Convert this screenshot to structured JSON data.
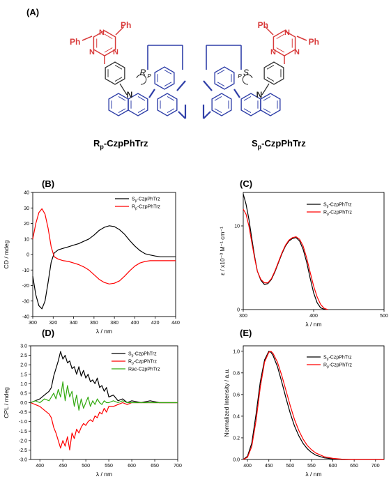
{
  "panels": {
    "a": "(A)",
    "b": "(B)",
    "c": "(C)",
    "d": "(D)",
    "e": "(E)"
  },
  "molecules": {
    "left": {
      "name_prefix": "R",
      "name_sub": "p",
      "name_suffix": "-CzpPhTrz",
      "chirality": "R",
      "chirality_sub": "P"
    },
    "right": {
      "name_prefix": "S",
      "name_sub": "p",
      "name_suffix": "-CzpPhTrz",
      "chirality": "S",
      "chirality_sub": "P"
    },
    "atoms": {
      "ph": "Ph",
      "n": "N"
    },
    "colors": {
      "triazine": "#d83a3a",
      "carbazole": "#2f3fa8",
      "linker": "#2f3fa8"
    }
  },
  "colors": {
    "sp": "#000000",
    "rp": "#ff0000",
    "rac": "#33aa11"
  },
  "chart_data": [
    {
      "panel": "(B)",
      "type": "line",
      "xlabel": "λ / nm",
      "ylabel": "CD / mdeg",
      "xlim": [
        300,
        440
      ],
      "ylim": [
        -40,
        40
      ],
      "xticks": [
        300,
        320,
        340,
        360,
        380,
        400,
        420,
        440
      ],
      "yticks": [
        -40,
        -30,
        -20,
        -10,
        0,
        10,
        20,
        30,
        40
      ],
      "legend": "top-right",
      "series": [
        {
          "name_prefix": "S",
          "name_sub": "p",
          "name_suffix": "-CzpPhTrz",
          "color": "#000000",
          "x": [
            300,
            303,
            306,
            309,
            312,
            315,
            318,
            321,
            325,
            330,
            335,
            340,
            345,
            350,
            355,
            360,
            365,
            370,
            375,
            380,
            385,
            390,
            395,
            400,
            405,
            410,
            415,
            420,
            425,
            430,
            440
          ],
          "y": [
            -14,
            -26,
            -33,
            -35,
            -30,
            -18,
            -5,
            1,
            3,
            4,
            5,
            6,
            7,
            8.5,
            10,
            12.5,
            15.5,
            17.5,
            18.5,
            18,
            16,
            13,
            9,
            5.5,
            2.5,
            0.5,
            -0.3,
            -1,
            -1.5,
            -1.5,
            -1.5
          ]
        },
        {
          "name_prefix": "R",
          "name_sub": "p",
          "name_suffix": "-CzpPhTrz",
          "color": "#ff0000",
          "x": [
            300,
            303,
            306,
            309,
            312,
            315,
            318,
            321,
            325,
            330,
            335,
            340,
            345,
            350,
            355,
            360,
            365,
            370,
            375,
            380,
            385,
            390,
            395,
            400,
            405,
            410,
            415,
            420,
            425,
            430,
            440
          ],
          "y": [
            10,
            20,
            27,
            29.5,
            26,
            17,
            5,
            -1.5,
            -3,
            -4,
            -4.5,
            -5.5,
            -6.5,
            -8,
            -10,
            -13,
            -16,
            -18,
            -19,
            -18.5,
            -17,
            -14,
            -10.5,
            -7.5,
            -5.5,
            -4.5,
            -4,
            -4,
            -4,
            -4,
            -4
          ]
        }
      ]
    },
    {
      "panel": "(C)",
      "type": "line",
      "xlabel": "λ / nm",
      "ylabel": "ε / x10⁻³ M⁻¹ cm⁻¹",
      "xlim": [
        300,
        500
      ],
      "ylim": [
        0,
        14
      ],
      "xticks": [
        300,
        400,
        500
      ],
      "yticks": [
        0,
        10
      ],
      "legend": "top-right",
      "series": [
        {
          "name_prefix": "S",
          "name_sub": "p",
          "name_suffix": "-CzpPhTrz",
          "color": "#000000",
          "x": [
            300,
            304,
            308,
            312,
            316,
            320,
            325,
            330,
            335,
            340,
            345,
            350,
            355,
            360,
            365,
            370,
            375,
            380,
            385,
            390,
            395,
            400,
            405,
            410,
            415,
            420
          ],
          "y": [
            13.8,
            12.6,
            10.8,
            8.6,
            6.4,
            4.6,
            3.5,
            3.0,
            3.1,
            3.6,
            4.5,
            5.6,
            6.7,
            7.6,
            8.2,
            8.5,
            8.6,
            8.2,
            7.2,
            5.7,
            3.8,
            2.0,
            0.8,
            0.2,
            0.05,
            0
          ]
        },
        {
          "name_prefix": "R",
          "name_sub": "p",
          "name_suffix": "-CzpPhTrz",
          "color": "#ff0000",
          "x": [
            300,
            304,
            308,
            312,
            316,
            320,
            325,
            330,
            335,
            340,
            345,
            350,
            355,
            360,
            365,
            370,
            375,
            380,
            385,
            390,
            395,
            400,
            405,
            410,
            415,
            420
          ],
          "y": [
            12.0,
            11.4,
            10.0,
            8.1,
            6.2,
            4.6,
            3.6,
            3.2,
            3.2,
            3.7,
            4.6,
            5.7,
            6.8,
            7.7,
            8.3,
            8.6,
            8.7,
            8.4,
            7.6,
            6.2,
            4.5,
            2.8,
            1.5,
            0.6,
            0.15,
            0
          ]
        }
      ]
    },
    {
      "panel": "(D)",
      "type": "line",
      "xlabel": "λ / nm",
      "ylabel": "CPL / mdeg",
      "xlim": [
        380,
        700
      ],
      "ylim": [
        -3.0,
        3.0
      ],
      "xticks": [
        400,
        450,
        500,
        550,
        600,
        650,
        700
      ],
      "yticks": [
        -3.0,
        -2.5,
        -2.0,
        -1.5,
        -1.0,
        -0.5,
        0.0,
        0.5,
        1.0,
        1.5,
        2.0,
        2.5,
        3.0
      ],
      "legend": "top-right",
      "series": [
        {
          "name_prefix": "S",
          "name_sub": "p",
          "name_suffix": "-CzpPhTrz",
          "color": "#000000",
          "x": [
            380,
            390,
            400,
            410,
            420,
            425,
            430,
            435,
            440,
            445,
            450,
            455,
            460,
            465,
            470,
            475,
            480,
            485,
            490,
            495,
            500,
            505,
            510,
            515,
            520,
            525,
            530,
            535,
            540,
            545,
            550,
            560,
            570,
            580,
            590,
            600,
            620,
            640,
            660,
            680,
            700
          ],
          "y": [
            0.0,
            0.1,
            0.2,
            0.4,
            0.6,
            0.8,
            1.4,
            1.8,
            2.2,
            2.7,
            2.3,
            2.5,
            2.1,
            2.2,
            1.8,
            1.9,
            1.5,
            1.9,
            1.4,
            1.7,
            1.3,
            1.5,
            1.1,
            1.2,
            1.0,
            1.3,
            0.8,
            0.9,
            0.6,
            0.8,
            0.3,
            0.4,
            0.1,
            0.2,
            0.0,
            0.1,
            0.0,
            0.1,
            0.0,
            0.0,
            0.0
          ]
        },
        {
          "name_prefix": "R",
          "name_sub": "p",
          "name_suffix": "-CzpPhTrz",
          "color": "#ff0000",
          "x": [
            380,
            390,
            400,
            410,
            420,
            425,
            430,
            435,
            440,
            445,
            450,
            455,
            460,
            465,
            470,
            475,
            480,
            485,
            490,
            495,
            500,
            505,
            510,
            515,
            520,
            525,
            530,
            535,
            540,
            545,
            550,
            560,
            570,
            580,
            590,
            600,
            620,
            640,
            660,
            680,
            700
          ],
          "y": [
            0.0,
            -0.1,
            -0.2,
            -0.4,
            -0.6,
            -0.8,
            -1.3,
            -1.6,
            -2.0,
            -2.4,
            -2.0,
            -2.3,
            -1.8,
            -2.5,
            -1.6,
            -1.9,
            -1.4,
            -1.6,
            -1.3,
            -1.1,
            -1.2,
            -1.0,
            -0.9,
            -1.0,
            -0.7,
            -0.8,
            -0.5,
            -0.6,
            -0.3,
            -0.5,
            -0.2,
            -0.2,
            -0.1,
            0.0,
            -0.1,
            0.0,
            0.0,
            0.0,
            0.0,
            0.0,
            0.0
          ]
        },
        {
          "name_prefix": "Rac-CzpPhTrz",
          "name_sub": "",
          "name_suffix": "",
          "color": "#33aa11",
          "x": [
            380,
            390,
            400,
            410,
            420,
            425,
            430,
            435,
            440,
            445,
            450,
            455,
            460,
            465,
            470,
            475,
            480,
            485,
            490,
            495,
            500,
            505,
            510,
            515,
            520,
            525,
            530,
            535,
            540,
            545,
            550,
            560,
            570,
            580,
            590,
            600,
            620,
            640,
            660,
            680,
            700
          ],
          "y": [
            0.0,
            0.1,
            0.0,
            0.2,
            0.1,
            0.3,
            0.5,
            0.2,
            0.7,
            0.3,
            1.1,
            0.1,
            0.9,
            0.3,
            0.6,
            -0.2,
            0.4,
            -0.4,
            0.2,
            -0.3,
            0.0,
            0.3,
            -0.2,
            0.1,
            -0.1,
            0.2,
            0.0,
            -0.1,
            0.1,
            0.0,
            0.0,
            0.1,
            0.0,
            0.1,
            0.0,
            0.0,
            0.0,
            0.0,
            0.0,
            0.0,
            0.0
          ]
        }
      ]
    },
    {
      "panel": "(E)",
      "type": "line",
      "xlabel": "λ / nm",
      "ylabel": "Normalized Intensity / a.u.",
      "xlim": [
        390,
        720
      ],
      "ylim": [
        0,
        1.05
      ],
      "xticks": [
        400,
        450,
        500,
        550,
        600,
        650,
        700
      ],
      "yticks": [
        0.0,
        0.2,
        0.4,
        0.6,
        0.8,
        1.0
      ],
      "legend": "top-right",
      "series": [
        {
          "name_prefix": "S",
          "name_sub": "p",
          "name_suffix": "-CzpPhTrz",
          "color": "#000000",
          "x": [
            390,
            400,
            410,
            420,
            430,
            440,
            450,
            455,
            460,
            470,
            480,
            490,
            500,
            510,
            520,
            530,
            540,
            550,
            560,
            580,
            600,
            620,
            650,
            700,
            720
          ],
          "y": [
            0.0,
            0.03,
            0.15,
            0.42,
            0.72,
            0.92,
            1.0,
            0.99,
            0.96,
            0.86,
            0.72,
            0.57,
            0.43,
            0.31,
            0.22,
            0.15,
            0.1,
            0.065,
            0.04,
            0.015,
            0.005,
            0.0,
            0.0,
            0.0,
            0.0
          ]
        },
        {
          "name_prefix": "R",
          "name_sub": "p",
          "name_suffix": "-CzpPhTrz",
          "color": "#ff0000",
          "x": [
            390,
            400,
            410,
            420,
            430,
            440,
            450,
            455,
            460,
            470,
            480,
            490,
            500,
            510,
            520,
            530,
            540,
            550,
            560,
            580,
            600,
            620,
            650,
            700,
            720
          ],
          "y": [
            0.0,
            0.02,
            0.12,
            0.36,
            0.67,
            0.9,
            0.99,
            1.0,
            0.98,
            0.9,
            0.78,
            0.64,
            0.5,
            0.37,
            0.27,
            0.19,
            0.13,
            0.09,
            0.06,
            0.025,
            0.01,
            0.003,
            0.0,
            0.0,
            0.0
          ]
        }
      ]
    }
  ]
}
